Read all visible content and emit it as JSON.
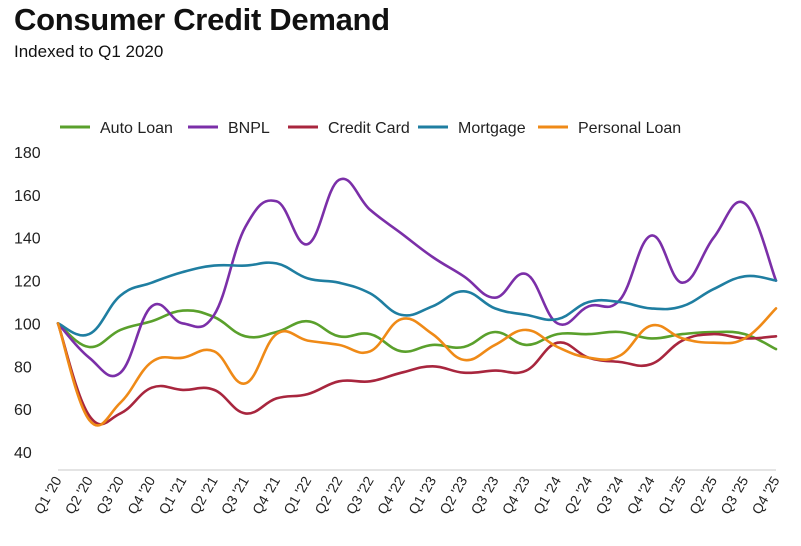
{
  "chart_data": {
    "type": "line",
    "title": "Consumer Credit Demand",
    "subtitle": "Indexed to Q1 2020",
    "xlabel": "",
    "ylabel": "",
    "ylim": [
      40,
      180
    ],
    "yticks": [
      40,
      60,
      80,
      100,
      120,
      140,
      160,
      180
    ],
    "grid": false,
    "legend_position": "top",
    "categories": [
      "Q1 '20",
      "Q2 '20",
      "Q3 '20",
      "Q4 '20",
      "Q1 '21",
      "Q2 '21",
      "Q3 '21",
      "Q4 '21",
      "Q1 '22",
      "Q2 '22",
      "Q3 '22",
      "Q4 '22",
      "Q1 '23",
      "Q2 '23",
      "Q3 '23",
      "Q4 '23",
      "Q1 '24",
      "Q2 '24",
      "Q3 '24",
      "Q4 '24",
      "Q1 '25",
      "Q2 '25",
      "Q3 '25",
      "Q4 '25"
    ],
    "series": [
      {
        "name": "Auto Loan",
        "color": "#5aa02c",
        "values": [
          100,
          89,
          97,
          101,
          106,
          103,
          94,
          96,
          101,
          94,
          95,
          87,
          90,
          89,
          96,
          90,
          95,
          95,
          96,
          93,
          95,
          96,
          95,
          88
        ]
      },
      {
        "name": "BNPL",
        "color": "#7b2fa8",
        "values": [
          100,
          84,
          77,
          108,
          100,
          104,
          145,
          157,
          137,
          167,
          153,
          142,
          131,
          122,
          112,
          123,
          100,
          108,
          111,
          141,
          119,
          140,
          156,
          120
        ]
      },
      {
        "name": "Credit Card",
        "color": "#a8263e",
        "values": [
          100,
          57,
          58,
          70,
          69,
          69,
          58,
          65,
          67,
          73,
          73,
          77,
          80,
          77,
          78,
          78,
          91,
          84,
          82,
          81,
          92,
          95,
          93,
          94
        ]
      },
      {
        "name": "Mortgage",
        "color": "#1f7ea1",
        "values": [
          100,
          95,
          113,
          119,
          124,
          127,
          127,
          128,
          121,
          119,
          114,
          104,
          108,
          115,
          107,
          104,
          102,
          110,
          110,
          107,
          108,
          116,
          122,
          120
        ]
      },
      {
        "name": "Personal Loan",
        "color": "#ef8a17",
        "values": [
          100,
          55,
          63,
          82,
          84,
          87,
          72,
          95,
          92,
          90,
          87,
          102,
          95,
          83,
          90,
          97,
          89,
          84,
          85,
          99,
          93,
          91,
          93,
          107
        ]
      }
    ]
  }
}
